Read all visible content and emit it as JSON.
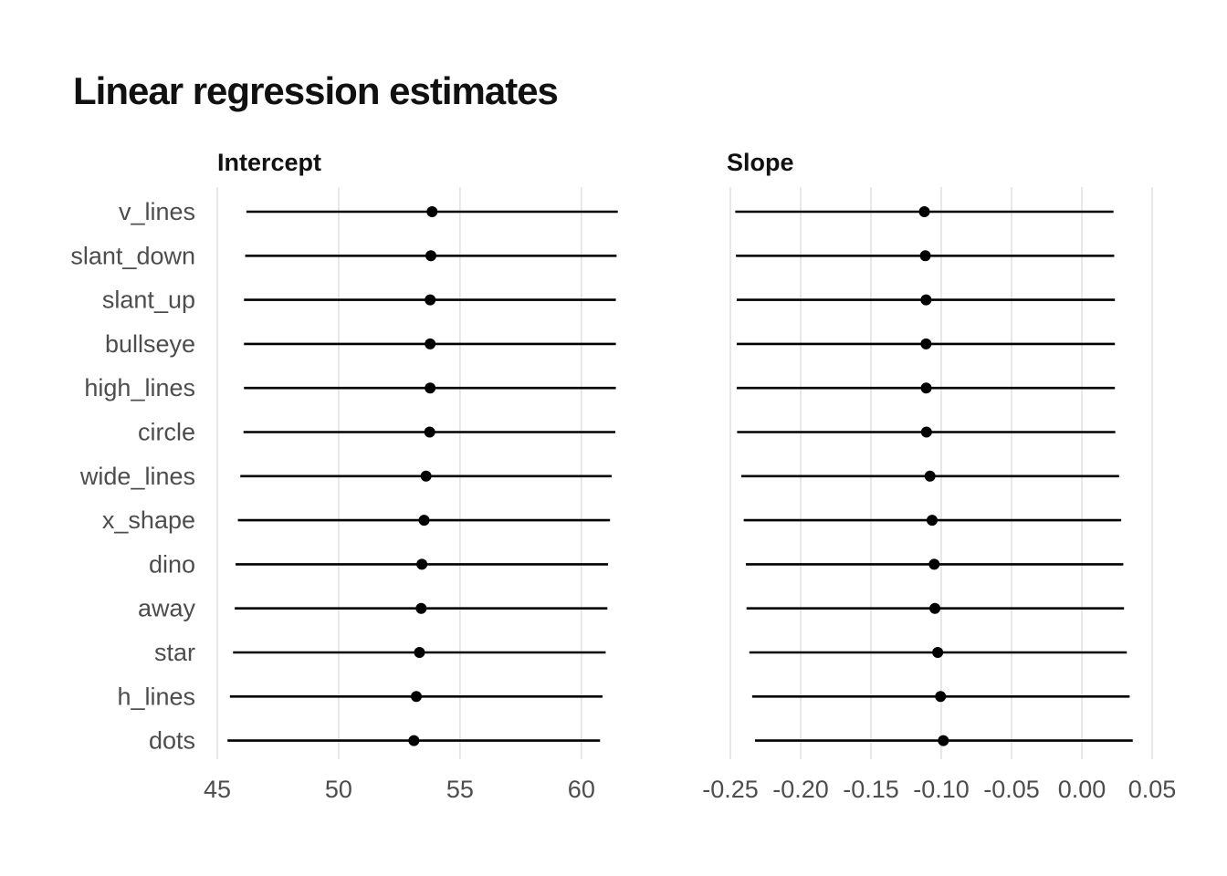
{
  "title": "Linear regression estimates",
  "chart_data": {
    "type": "scatter",
    "subtype": "point-range",
    "title": "Linear regression estimates",
    "categories": [
      "v_lines",
      "slant_down",
      "slant_up",
      "bullseye",
      "high_lines",
      "circle",
      "wide_lines",
      "x_shape",
      "dino",
      "away",
      "star",
      "h_lines",
      "dots"
    ],
    "grid": true,
    "legend": "none",
    "colors": {
      "mark": "#000000",
      "grid": "#d9d9d9",
      "label": "#4d4d4d"
    },
    "facets": [
      {
        "name": "Intercept",
        "xlim": [
          45,
          62
        ],
        "ticks": [
          45,
          50,
          55,
          60
        ],
        "tick_labels": [
          "45",
          "50",
          "55",
          "60"
        ],
        "estimates": [
          53.85,
          53.8,
          53.77,
          53.77,
          53.77,
          53.75,
          53.6,
          53.52,
          53.43,
          53.4,
          53.33,
          53.2,
          53.1
        ],
        "lower": [
          46.2,
          46.15,
          46.1,
          46.1,
          46.1,
          46.08,
          45.95,
          45.85,
          45.75,
          45.72,
          45.65,
          45.52,
          45.42
        ],
        "upper": [
          61.5,
          61.45,
          61.42,
          61.42,
          61.42,
          61.4,
          61.25,
          61.18,
          61.1,
          61.07,
          61.0,
          60.87,
          60.77
        ]
      },
      {
        "name": "Slope",
        "xlim": [
          -0.25,
          0.05
        ],
        "ticks": [
          -0.25,
          -0.2,
          -0.15,
          -0.1,
          -0.05,
          0.0,
          0.05
        ],
        "tick_labels": [
          "-0.25",
          "-0.20",
          "-0.15",
          "-0.10",
          "-0.05",
          "0.00",
          "0.05"
        ],
        "estimates": [
          -0.112,
          -0.1113,
          -0.1108,
          -0.1108,
          -0.1107,
          -0.1105,
          -0.108,
          -0.1065,
          -0.105,
          -0.1045,
          -0.1025,
          -0.1005,
          -0.0985
        ],
        "lower": [
          -0.2465,
          -0.246,
          -0.2455,
          -0.2455,
          -0.2455,
          -0.2452,
          -0.2422,
          -0.2405,
          -0.239,
          -0.2385,
          -0.2365,
          -0.2345,
          -0.2325
        ],
        "upper": [
          0.0225,
          0.023,
          0.0235,
          0.0235,
          0.0235,
          0.0238,
          0.0265,
          0.028,
          0.0295,
          0.03,
          0.032,
          0.034,
          0.0362
        ]
      }
    ]
  }
}
